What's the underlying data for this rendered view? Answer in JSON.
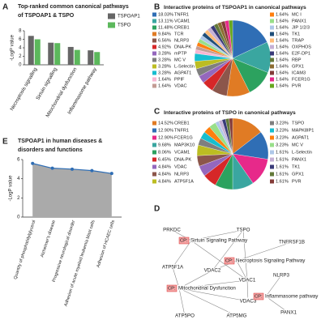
{
  "chart_data": [
    {
      "type": "bar",
      "label": "A",
      "title": [
        "Top-ranked common canonical pathways",
        "of TSPOAP1 & TSPO"
      ],
      "y_label": "-LogP value",
      "categories": [
        "Necroptosis signalling",
        "Sirtuin signalling",
        "Mitochondrial dysfunction",
        "Inflammasome pathway"
      ],
      "series": [
        {
          "name": "TSPOAP1",
          "color": "#666666",
          "values": [
            6.8,
            5.2,
            4.2,
            3.4
          ]
        },
        {
          "name": "TSPO",
          "color": "#5cb85c",
          "values": [
            6.0,
            5.1,
            3.5,
            3.0
          ]
        }
      ],
      "ylim": [
        0,
        8
      ],
      "yticks": [
        0,
        2,
        4,
        6,
        8
      ]
    },
    {
      "type": "pie",
      "label": "B",
      "title": "Interactive proteins of TSPOAP1 in canonical pathways",
      "categories": [
        "TNFR1",
        "VCAM1",
        "CREB1",
        "TCR",
        "NLRP3",
        "DNA-PK",
        "mPTP",
        "MC V",
        "L-Selectin",
        "AGPAT1",
        "PPIF",
        "VDAC",
        "MC I",
        "PANX1",
        "JIP 1/2/3",
        "TK1",
        "TRAP",
        "OXPHOS",
        "E2F-DP1",
        "RBP",
        "GPX1",
        "ICAM3",
        "FCER1G",
        "PVR"
      ],
      "values": [
        18.03,
        13.11,
        11.48,
        9.84,
        6.56,
        4.92,
        3.28,
        3.28,
        3.28,
        3.28,
        1.64,
        1.64,
        1.64,
        1.64,
        1.64,
        1.64,
        1.64,
        1.64,
        1.64,
        1.64,
        1.64,
        1.64,
        1.64,
        1.64
      ],
      "value_labels": [
        "18.03%",
        "13.11%",
        "11.48%",
        "9.84%",
        "6.56%",
        "4.92%",
        "3.28%",
        "3.28%",
        "3.28%",
        "3.28%",
        "1.64%",
        "1.64%",
        "1.64%",
        "1.64%",
        "1.64%",
        "1.64%",
        "1.64%",
        "1.64%",
        "1.64%",
        "1.64%",
        "1.64%",
        "1.64%",
        "1.64%",
        "1.64%"
      ],
      "colors": [
        "#2f6eb5",
        "#3aa6a0",
        "#2ca25f",
        "#e07b24",
        "#8c564b",
        "#d62728",
        "#9467bd",
        "#7f7f7f",
        "#bcbd22",
        "#17becf",
        "#f7b6d2",
        "#c49c94",
        "#ff7f0e",
        "#98df8a",
        "#aec7e8",
        "#1f4e79",
        "#ffbb78",
        "#c5b0d5",
        "#393b79",
        "#637939",
        "#8c6d31",
        "#843c39",
        "#e7298a",
        "#66a61e"
      ]
    },
    {
      "type": "pie",
      "label": "C",
      "title": "Interactive proteins of TSPO in canonical pathways",
      "categories": [
        "CREB1",
        "TNFR1",
        "FCER1G",
        "MAP3K10",
        "VCAM1",
        "DNA-PK",
        "VDAC",
        "NLRP3",
        "ATP5F1A",
        "TSPO",
        "MAPK8IP1",
        "AGPAT1",
        "MC V",
        "L-Selectin",
        "PANX1",
        "TK1",
        "GPX1",
        "PVR"
      ],
      "values": [
        14.52,
        12.9,
        12.9,
        9.68,
        8.06,
        6.45,
        4.84,
        4.84,
        4.84,
        3.23,
        3.23,
        3.23,
        3.23,
        1.61,
        1.61,
        1.61,
        1.61,
        1.61
      ],
      "value_labels": [
        "14.52%",
        "12.90%",
        "12.90%",
        "9.68%",
        "8.06%",
        "6.45%",
        "4.84%",
        "4.84%",
        "4.84%",
        "3.23%",
        "3.23%",
        "3.23%",
        "3.23%",
        "1.61%",
        "1.61%",
        "1.61%",
        "1.61%",
        "1.61%"
      ],
      "colors": [
        "#e07b24",
        "#2f6eb5",
        "#e7298a",
        "#3aa6a0",
        "#2ca25f",
        "#d62728",
        "#9467bd",
        "#8c564b",
        "#bcbd22",
        "#7f7f7f",
        "#17becf",
        "#ff7f0e",
        "#98df8a",
        "#aec7e8",
        "#c5b0d5",
        "#393b79",
        "#637939",
        "#843c39"
      ]
    },
    {
      "type": "area",
      "label": "E",
      "title": [
        "TSPOAP1 in human diseases &",
        "disorders and functions"
      ],
      "y_label": "-LogP value",
      "categories": [
        "Quantity of phosphatidylglycerol",
        "Alzheimer's disease",
        "Progressive neurological disorder",
        "Adhesion of acute myeloid leukemia blast cells",
        "Adhesion of HCAEC cells"
      ],
      "values": [
        5.6,
        5.1,
        5.0,
        4.85,
        4.55
      ],
      "color": "#2f6eb5",
      "fill": "#aaaaaa",
      "ylim": [
        0,
        6
      ],
      "yticks": [
        0,
        2,
        4,
        6
      ]
    }
  ],
  "network": {
    "label": "D",
    "nodes": [
      {
        "label": "PRKDC"
      },
      {
        "label": "TSPO"
      },
      {
        "label": "TNFRSF1B"
      },
      {
        "tag": "CP:",
        "label": "Sirtuin Signaling Pathway"
      },
      {
        "tag": "CP:",
        "label": "Necroptosis Signaling Pathway"
      },
      {
        "label": "VDAC2"
      },
      {
        "label": "VDAC1"
      },
      {
        "label": "NLRP3"
      },
      {
        "label": "ATP5F1A"
      },
      {
        "tag": "CP:",
        "label": "Mitochondrial Dysfunction"
      },
      {
        "label": "VDAC3"
      },
      {
        "tag": "CP:",
        "label": "Inflammasome pathway"
      },
      {
        "label": "ATP5PO"
      },
      {
        "label": "ATP5MG"
      },
      {
        "label": "PANX1"
      }
    ]
  }
}
